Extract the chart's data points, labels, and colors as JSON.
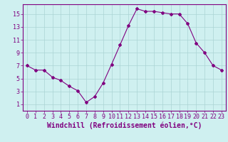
{
  "x": [
    0,
    1,
    2,
    3,
    4,
    5,
    6,
    7,
    8,
    9,
    10,
    11,
    12,
    13,
    14,
    15,
    16,
    17,
    18,
    19,
    20,
    21,
    22,
    23
  ],
  "y": [
    7.0,
    6.3,
    6.3,
    5.2,
    4.7,
    3.8,
    3.1,
    1.3,
    2.2,
    4.3,
    7.2,
    10.2,
    13.2,
    15.8,
    15.4,
    15.4,
    15.2,
    15.0,
    15.0,
    13.5,
    10.5,
    9.0,
    7.0,
    6.3
  ],
  "line_color": "#800080",
  "marker": "D",
  "marker_size": 2,
  "bg_color": "#cff0f0",
  "grid_color": "#aad4d4",
  "xlabel": "Windchill (Refroidissement éolien,°C)",
  "xlim": [
    -0.5,
    23.5
  ],
  "ylim": [
    0,
    16.5
  ],
  "yticks": [
    1,
    3,
    5,
    7,
    9,
    11,
    13,
    15
  ],
  "xticks": [
    0,
    1,
    2,
    3,
    4,
    5,
    6,
    7,
    8,
    9,
    10,
    11,
    12,
    13,
    14,
    15,
    16,
    17,
    18,
    19,
    20,
    21,
    22,
    23
  ],
  "tick_label_fontsize": 6,
  "xlabel_fontsize": 7,
  "axis_color": "#800080"
}
